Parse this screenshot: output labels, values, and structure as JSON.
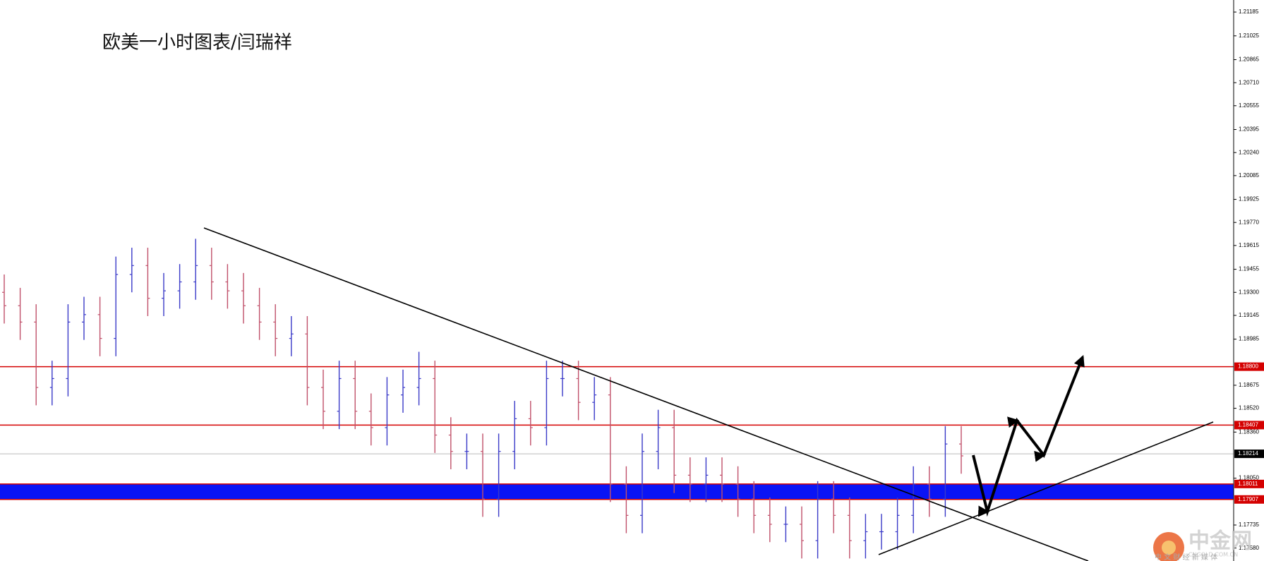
{
  "chart_data": {
    "type": "ohlc",
    "title": "欧美一小时图表/闫瑞祥",
    "ylim": [
      1.17493,
      1.21266
    ],
    "yticks": [
      1.21185,
      1.21025,
      1.20865,
      {
        "value": 1.2071,
        "label": "1.20710"
      },
      1.20555,
      1.20395,
      {
        "value": 1.2024,
        "label": "1.20240"
      },
      1.20085,
      1.19925,
      {
        "value": 1.1977,
        "label": "1.19770"
      },
      1.19615,
      1.19455,
      {
        "value": 1.193,
        "label": "1.19300"
      },
      1.19145,
      1.18985,
      1.18675,
      {
        "value": 1.1852,
        "label": "1.18520"
      },
      {
        "value": 1.1836,
        "label": "1.18360"
      },
      {
        "value": 1.1805,
        "label": "1.18050"
      },
      1.17735,
      {
        "value": 1.1758,
        "label": "1.17580"
      }
    ],
    "up_color": "#3a3ac8",
    "down_color": "#c0506a",
    "open": [
      1.193,
      1.1921,
      1.191,
      1.1866,
      1.1872,
      1.191,
      1.1915,
      1.1899,
      1.1942,
      1.1948,
      1.1926,
      1.1931,
      1.1937,
      1.1948,
      1.1937,
      1.1931,
      1.1921,
      1.191,
      1.1899,
      1.1902,
      1.1866,
      1.185,
      1.1872,
      1.185,
      1.1839,
      1.1861,
      1.1866,
      1.1872,
      1.1834,
      1.1823,
      1.1823,
      1.1791,
      1.1823,
      1.1845,
      1.1839,
      1.1872,
      1.1872,
      1.1856,
      1.1861,
      1.1801,
      1.178,
      1.1823,
      1.1839,
      1.1807,
      1.1801,
      1.1807,
      1.1801,
      1.1791,
      1.178,
      1.1774,
      1.1774,
      1.1763,
      1.1791,
      1.178,
      1.1763,
      1.1769,
      1.1769,
      1.178,
      1.1801,
      1.1791,
      1.1828
    ],
    "high": [
      1.1942,
      1.1933,
      1.1922,
      1.1884,
      1.1922,
      1.1927,
      1.1927,
      1.1954,
      1.196,
      1.196,
      1.1943,
      1.1949,
      1.1966,
      1.196,
      1.1949,
      1.1943,
      1.1933,
      1.1922,
      1.1914,
      1.1914,
      1.1878,
      1.1884,
      1.1884,
      1.1862,
      1.1873,
      1.1878,
      1.189,
      1.1884,
      1.1846,
      1.1835,
      1.1835,
      1.1835,
      1.1857,
      1.1857,
      1.1884,
      1.1884,
      1.1884,
      1.1873,
      1.1873,
      1.1813,
      1.1835,
      1.1851,
      1.1851,
      1.1819,
      1.1819,
      1.1819,
      1.1813,
      1.1803,
      1.1792,
      1.1786,
      1.1786,
      1.1803,
      1.1803,
      1.1792,
      1.1781,
      1.1781,
      1.1792,
      1.1813,
      1.1813,
      1.184,
      1.184
    ],
    "low": [
      1.1909,
      1.1898,
      1.1854,
      1.1854,
      1.186,
      1.1898,
      1.1887,
      1.1887,
      1.193,
      1.1914,
      1.1914,
      1.1919,
      1.1925,
      1.1925,
      1.1919,
      1.1909,
      1.1898,
      1.1887,
      1.1887,
      1.1854,
      1.1838,
      1.1838,
      1.1838,
      1.1827,
      1.1827,
      1.1849,
      1.1854,
      1.1822,
      1.1811,
      1.1811,
      1.1779,
      1.1779,
      1.1811,
      1.1827,
      1.1827,
      1.186,
      1.1844,
      1.1844,
      1.1789,
      1.1768,
      1.1768,
      1.1811,
      1.1795,
      1.1789,
      1.1789,
      1.1789,
      1.1779,
      1.1768,
      1.1762,
      1.1762,
      1.1751,
      1.1751,
      1.1768,
      1.1751,
      1.1751,
      1.1757,
      1.1757,
      1.1768,
      1.1779,
      1.1779,
      1.1808
    ],
    "close": [
      1.1921,
      1.191,
      1.1866,
      1.1872,
      1.191,
      1.1915,
      1.1899,
      1.1942,
      1.1948,
      1.1926,
      1.1931,
      1.1937,
      1.1948,
      1.1937,
      1.1931,
      1.1921,
      1.191,
      1.1899,
      1.1902,
      1.1866,
      1.185,
      1.1872,
      1.185,
      1.1839,
      1.1861,
      1.1866,
      1.1872,
      1.1834,
      1.1823,
      1.1823,
      1.1791,
      1.1823,
      1.1845,
      1.1839,
      1.1872,
      1.1872,
      1.1856,
      1.1861,
      1.1801,
      1.178,
      1.1823,
      1.1839,
      1.1807,
      1.1801,
      1.1807,
      1.1801,
      1.1791,
      1.178,
      1.1774,
      1.1774,
      1.1763,
      1.1791,
      1.178,
      1.1763,
      1.1769,
      1.1769,
      1.178,
      1.1801,
      1.1791,
      1.1828,
      1.182
    ],
    "zone": {
      "from": 1.17907,
      "to": 1.18011,
      "color": "#0a14f5"
    },
    "levels": [
      {
        "value": 1.188,
        "label": "1.18800",
        "color": "#d40000"
      },
      {
        "value": 1.18407,
        "label": "1.18407",
        "color": "#d40000"
      },
      {
        "value": 1.18214,
        "label": "1.18214",
        "color": "#000000"
      },
      {
        "value": 1.18011,
        "label": "1.18011",
        "color": "#d40000"
      },
      {
        "value": 1.17907,
        "label": "1.17907",
        "color": "#d40000"
      }
    ],
    "watermark": {
      "logo": "中金网",
      "site": "CNGOLD.COM.CN",
      "slogan": "中 文 财 经 新 媒 体"
    }
  }
}
